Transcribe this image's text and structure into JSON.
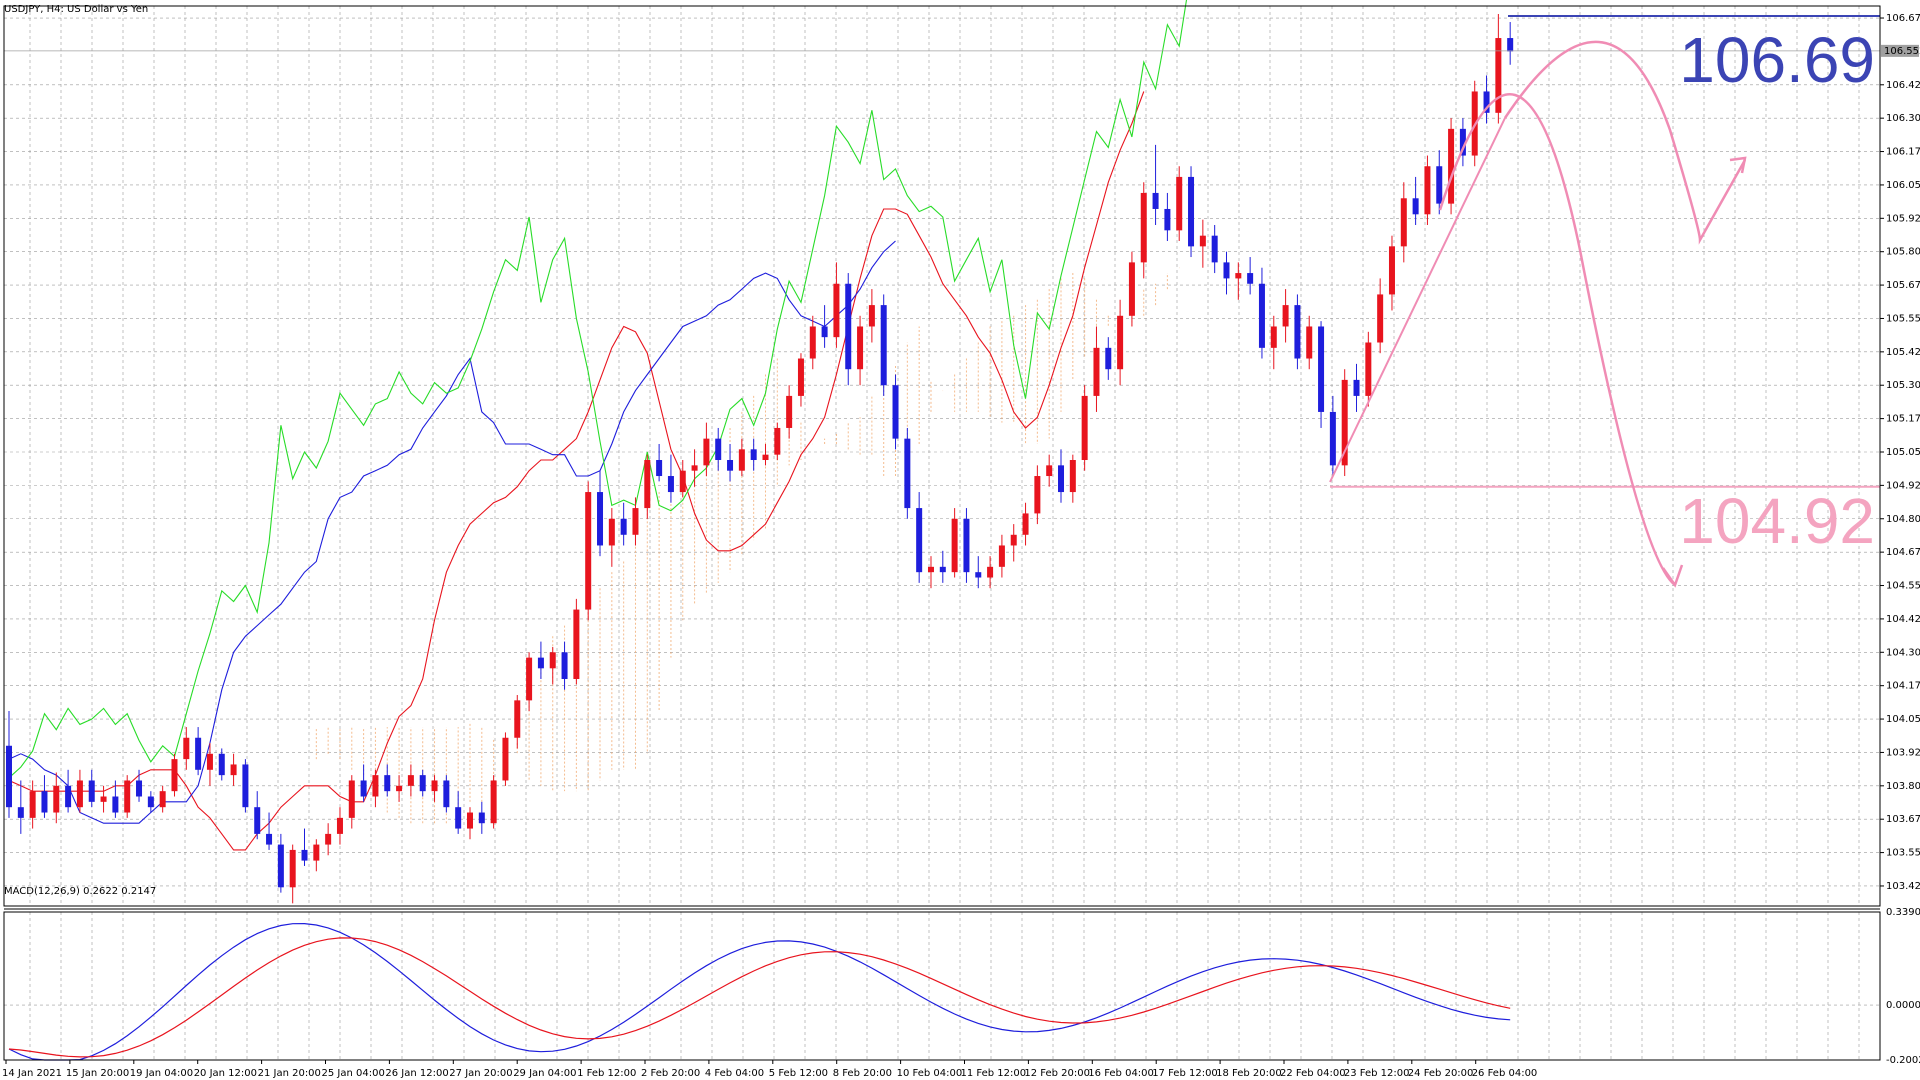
{
  "window": {
    "title": "USDJPY, H4:  US Dollar vs Yen",
    "symbol": "USDJPY",
    "timeframe": "H4"
  },
  "price_axis": {
    "labels": [
      "106.675",
      "106.425",
      "106.300",
      "106.175",
      "106.050",
      "105.925",
      "105.800",
      "105.675",
      "105.550",
      "105.425",
      "105.300",
      "105.175",
      "105.050",
      "104.925",
      "104.800",
      "104.675",
      "104.550",
      "104.425",
      "104.300",
      "104.175",
      "104.050",
      "103.925",
      "103.800",
      "103.675",
      "103.550",
      "103.425"
    ],
    "current_price": "106.552"
  },
  "macd": {
    "label": "MACD(12,26,9) 0.2622 0.2147",
    "axis_labels": [
      "0.3390",
      "0.0000",
      "-0.2002"
    ]
  },
  "time_axis": {
    "labels": [
      "14 Jan 2021",
      "15 Jan 20:00",
      "19 Jan 04:00",
      "20 Jan 12:00",
      "21 Jan 20:00",
      "25 Jan 04:00",
      "26 Jan 12:00",
      "27 Jan 20:00",
      "29 Jan 04:00",
      "1 Feb 12:00",
      "2 Feb 20:00",
      "4 Feb 04:00",
      "5 Feb 12:00",
      "8 Feb 20:00",
      "10 Feb 04:00",
      "11 Feb 12:00",
      "12 Feb 20:00",
      "16 Feb 04:00",
      "17 Feb 12:00",
      "18 Feb 20:00",
      "22 Feb 04:00",
      "23 Feb 12:00",
      "24 Feb 20:00",
      "26 Feb 04:00"
    ]
  },
  "annotations": {
    "high_label": "106.69",
    "low_label": "104.92",
    "high_color": "#3b44b4",
    "low_color": "#f4a4c0"
  },
  "colors": {
    "bull": "#e8141e",
    "bear": "#1e1edc",
    "tenkan": "#e8141e",
    "kijun": "#1e1edc",
    "chikou": "#28dc28",
    "cloud": "#f0a060",
    "projection": "#f08cb4"
  },
  "chart_data": {
    "type": "candlestick",
    "ylim": [
      103.35,
      106.72
    ],
    "macd_ylim": [
      -0.2002,
      0.339
    ],
    "candles": [
      [
        103.95,
        104.08,
        103.68,
        103.72
      ],
      [
        103.72,
        103.82,
        103.62,
        103.68
      ],
      [
        103.68,
        103.82,
        103.64,
        103.78
      ],
      [
        103.78,
        103.84,
        103.68,
        103.7
      ],
      [
        103.7,
        103.85,
        103.66,
        103.8
      ],
      [
        103.8,
        103.86,
        103.7,
        103.72
      ],
      [
        103.72,
        103.86,
        103.7,
        103.82
      ],
      [
        103.82,
        103.86,
        103.72,
        103.74
      ],
      [
        103.74,
        103.8,
        103.7,
        103.76
      ],
      [
        103.76,
        103.82,
        103.68,
        103.7
      ],
      [
        103.7,
        103.84,
        103.68,
        103.82
      ],
      [
        103.82,
        103.86,
        103.74,
        103.76
      ],
      [
        103.76,
        103.78,
        103.7,
        103.72
      ],
      [
        103.72,
        103.8,
        103.7,
        103.78
      ],
      [
        103.78,
        103.92,
        103.76,
        103.9
      ],
      [
        103.9,
        104.02,
        103.86,
        103.98
      ],
      [
        103.98,
        104.02,
        103.84,
        103.86
      ],
      [
        103.86,
        103.96,
        103.8,
        103.92
      ],
      [
        103.92,
        103.94,
        103.82,
        103.84
      ],
      [
        103.84,
        103.92,
        103.8,
        103.88
      ],
      [
        103.88,
        103.9,
        103.7,
        103.72
      ],
      [
        103.72,
        103.78,
        103.6,
        103.62
      ],
      [
        103.62,
        103.7,
        103.56,
        103.58
      ],
      [
        103.58,
        103.62,
        103.4,
        103.42
      ],
      [
        103.42,
        103.58,
        103.36,
        103.56
      ],
      [
        103.56,
        103.64,
        103.5,
        103.52
      ],
      [
        103.52,
        103.6,
        103.48,
        103.58
      ],
      [
        103.58,
        103.66,
        103.54,
        103.62
      ],
      [
        103.62,
        103.72,
        103.58,
        103.68
      ],
      [
        103.68,
        103.84,
        103.64,
        103.82
      ],
      [
        103.82,
        103.88,
        103.74,
        103.76
      ],
      [
        103.76,
        103.86,
        103.72,
        103.84
      ],
      [
        103.84,
        103.88,
        103.76,
        103.78
      ],
      [
        103.78,
        103.84,
        103.74,
        103.8
      ],
      [
        103.8,
        103.88,
        103.76,
        103.84
      ],
      [
        103.84,
        103.86,
        103.76,
        103.78
      ],
      [
        103.78,
        103.84,
        103.74,
        103.82
      ],
      [
        103.82,
        103.84,
        103.7,
        103.72
      ],
      [
        103.72,
        103.78,
        103.62,
        103.64
      ],
      [
        103.64,
        103.72,
        103.6,
        103.7
      ],
      [
        103.7,
        103.74,
        103.62,
        103.66
      ],
      [
        103.66,
        103.84,
        103.64,
        103.82
      ],
      [
        103.82,
        104.0,
        103.8,
        103.98
      ],
      [
        103.98,
        104.14,
        103.94,
        104.12
      ],
      [
        104.12,
        104.3,
        104.08,
        104.28
      ],
      [
        104.28,
        104.34,
        104.2,
        104.24
      ],
      [
        104.24,
        104.32,
        104.18,
        104.3
      ],
      [
        104.3,
        104.34,
        104.16,
        104.2
      ],
      [
        104.2,
        104.5,
        104.18,
        104.46
      ],
      [
        104.46,
        104.94,
        104.42,
        104.9
      ],
      [
        104.9,
        104.98,
        104.66,
        104.7
      ],
      [
        104.7,
        104.84,
        104.62,
        104.8
      ],
      [
        104.8,
        104.86,
        104.7,
        104.74
      ],
      [
        104.74,
        104.88,
        104.7,
        104.84
      ],
      [
        104.84,
        105.04,
        104.8,
        105.02
      ],
      [
        105.02,
        105.08,
        104.94,
        104.96
      ],
      [
        104.96,
        105.04,
        104.86,
        104.9
      ],
      [
        104.9,
        105.02,
        104.88,
        104.98
      ],
      [
        104.98,
        105.06,
        104.92,
        105.0
      ],
      [
        105.0,
        105.16,
        104.96,
        105.1
      ],
      [
        105.1,
        105.14,
        104.98,
        105.02
      ],
      [
        105.02,
        105.08,
        104.94,
        104.98
      ],
      [
        104.98,
        105.1,
        104.96,
        105.06
      ],
      [
        105.06,
        105.1,
        104.98,
        105.02
      ],
      [
        105.02,
        105.08,
        105.0,
        105.04
      ],
      [
        105.04,
        105.16,
        105.02,
        105.14
      ],
      [
        105.14,
        105.3,
        105.1,
        105.26
      ],
      [
        105.26,
        105.42,
        105.22,
        105.4
      ],
      [
        105.4,
        105.56,
        105.36,
        105.52
      ],
      [
        105.52,
        105.6,
        105.44,
        105.48
      ],
      [
        105.48,
        105.76,
        105.44,
        105.68
      ],
      [
        105.68,
        105.72,
        105.3,
        105.36
      ],
      [
        105.36,
        105.56,
        105.3,
        105.52
      ],
      [
        105.52,
        105.66,
        105.46,
        105.6
      ],
      [
        105.6,
        105.64,
        105.26,
        105.3
      ],
      [
        105.3,
        105.34,
        105.06,
        105.1
      ],
      [
        105.1,
        105.14,
        104.8,
        104.84
      ],
      [
        104.84,
        104.9,
        104.56,
        104.6
      ],
      [
        104.6,
        104.66,
        104.54,
        104.62
      ],
      [
        104.62,
        104.68,
        104.56,
        104.6
      ],
      [
        104.6,
        104.84,
        104.58,
        104.8
      ],
      [
        104.8,
        104.84,
        104.56,
        104.6
      ],
      [
        104.6,
        104.66,
        104.54,
        104.58
      ],
      [
        104.58,
        104.66,
        104.54,
        104.62
      ],
      [
        104.62,
        104.74,
        104.58,
        104.7
      ],
      [
        104.7,
        104.78,
        104.64,
        104.74
      ],
      [
        104.74,
        104.86,
        104.7,
        104.82
      ],
      [
        104.82,
        105.0,
        104.78,
        104.96
      ],
      [
        104.96,
        105.04,
        104.92,
        105.0
      ],
      [
        105.0,
        105.06,
        104.86,
        104.9
      ],
      [
        104.9,
        105.04,
        104.86,
        105.02
      ],
      [
        105.02,
        105.3,
        104.98,
        105.26
      ],
      [
        105.26,
        105.52,
        105.2,
        105.44
      ],
      [
        105.44,
        105.48,
        105.32,
        105.36
      ],
      [
        105.36,
        105.62,
        105.3,
        105.56
      ],
      [
        105.56,
        105.8,
        105.52,
        105.76
      ],
      [
        105.76,
        106.06,
        105.7,
        106.02
      ],
      [
        106.02,
        106.2,
        105.9,
        105.96
      ],
      [
        105.96,
        106.02,
        105.84,
        105.88
      ],
      [
        105.88,
        106.12,
        105.84,
        106.08
      ],
      [
        106.08,
        106.12,
        105.78,
        105.82
      ],
      [
        105.82,
        105.92,
        105.74,
        105.86
      ],
      [
        105.86,
        105.9,
        105.72,
        105.76
      ],
      [
        105.76,
        105.8,
        105.64,
        105.7
      ],
      [
        105.7,
        105.76,
        105.62,
        105.72
      ],
      [
        105.72,
        105.78,
        105.64,
        105.68
      ],
      [
        105.68,
        105.74,
        105.4,
        105.44
      ],
      [
        105.44,
        105.56,
        105.36,
        105.52
      ],
      [
        105.52,
        105.66,
        105.46,
        105.6
      ],
      [
        105.6,
        105.64,
        105.36,
        105.4
      ],
      [
        105.4,
        105.56,
        105.36,
        105.52
      ],
      [
        105.52,
        105.54,
        105.14,
        105.2
      ],
      [
        105.2,
        105.26,
        104.96,
        105.0
      ],
      [
        105.0,
        105.36,
        104.96,
        105.32
      ],
      [
        105.32,
        105.38,
        105.2,
        105.26
      ],
      [
        105.26,
        105.5,
        105.22,
        105.46
      ],
      [
        105.46,
        105.7,
        105.42,
        105.64
      ],
      [
        105.64,
        105.86,
        105.58,
        105.82
      ],
      [
        105.82,
        106.06,
        105.76,
        106.0
      ],
      [
        106.0,
        106.08,
        105.9,
        105.94
      ],
      [
        105.94,
        106.16,
        105.9,
        106.12
      ],
      [
        106.12,
        106.18,
        105.94,
        105.98
      ],
      [
        105.98,
        106.3,
        105.94,
        106.26
      ],
      [
        106.26,
        106.3,
        106.12,
        106.16
      ],
      [
        106.16,
        106.44,
        106.12,
        106.4
      ],
      [
        106.4,
        106.46,
        106.28,
        106.32
      ],
      [
        106.32,
        106.69,
        106.28,
        106.6
      ],
      [
        106.6,
        106.66,
        106.5,
        106.55
      ]
    ],
    "tenkan": [
      103.82,
      103.8,
      103.78,
      103.78,
      103.78,
      103.78,
      103.78,
      103.78,
      103.78,
      103.8,
      103.8,
      103.84,
      103.86,
      103.86,
      103.86,
      103.8,
      103.72,
      103.68,
      103.62,
      103.56,
      103.56,
      103.62,
      103.66,
      103.72,
      103.76,
      103.8,
      103.8,
      103.8,
      103.76,
      103.74,
      103.74,
      103.84,
      103.96,
      104.06,
      104.1,
      104.2,
      104.42,
      104.6,
      104.7,
      104.78,
      104.82,
      104.86,
      104.88,
      104.92,
      104.98,
      105.02,
      105.02,
      105.06,
      105.1,
      105.2,
      105.32,
      105.44,
      105.52,
      105.5,
      105.42,
      105.24,
      105.06,
      104.96,
      104.82,
      104.72,
      104.68,
      104.68,
      104.7,
      104.74,
      104.78,
      104.86,
      104.94,
      105.04,
      105.1,
      105.18,
      105.34,
      105.52,
      105.7,
      105.86,
      105.96,
      105.96,
      105.94,
      105.86,
      105.78,
      105.68,
      105.62,
      105.56,
      105.48,
      105.42,
      105.32,
      105.2,
      105.14,
      105.18,
      105.3,
      105.44,
      105.56,
      105.74,
      105.9,
      106.06,
      106.18,
      106.28,
      106.4
    ],
    "kijun": [
      103.9,
      103.92,
      103.9,
      103.86,
      103.84,
      103.8,
      103.7,
      103.68,
      103.66,
      103.66,
      103.66,
      103.66,
      103.7,
      103.74,
      103.74,
      103.74,
      103.8,
      103.96,
      104.16,
      104.3,
      104.36,
      104.4,
      104.44,
      104.48,
      104.54,
      104.6,
      104.64,
      104.8,
      104.88,
      104.9,
      104.96,
      104.98,
      105.0,
      105.04,
      105.06,
      105.14,
      105.2,
      105.26,
      105.34,
      105.4,
      105.2,
      105.16,
      105.08,
      105.08,
      105.08,
      105.06,
      105.04,
      105.04,
      104.96,
      104.96,
      104.98,
      105.08,
      105.2,
      105.28,
      105.34,
      105.4,
      105.46,
      105.52,
      105.54,
      105.56,
      105.6,
      105.62,
      105.66,
      105.7,
      105.72,
      105.7,
      105.62,
      105.56,
      105.54,
      105.52,
      105.56,
      105.6,
      105.66,
      105.74,
      105.8,
      105.84
    ]
  }
}
